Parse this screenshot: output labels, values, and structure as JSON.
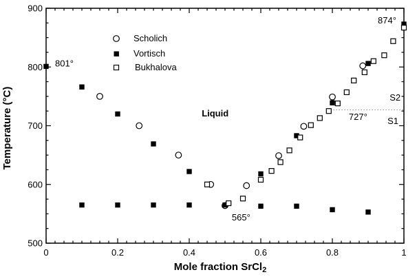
{
  "figure": {
    "background": "#ffffff",
    "axis_color": "#000000",
    "dotted_line_color": "#8a8a8a"
  },
  "chart_data": {
    "type": "scatter",
    "title": "",
    "xlabel_main": "Mole fraction SrCl",
    "xlabel_sub": "2",
    "ylabel": "Temperature (°C)",
    "xlim": [
      0,
      1
    ],
    "ylim": [
      500,
      900
    ],
    "grid": false,
    "legend_position": "upper-left-inside",
    "xticks": {
      "values": [
        0,
        0.2,
        0.4,
        0.6,
        0.8,
        1
      ],
      "labels": [
        "0",
        "0.2",
        "0.4",
        "0.6",
        "0.8",
        "1"
      ],
      "minor_step": 0.025
    },
    "yticks": {
      "values": [
        500,
        600,
        700,
        800,
        900
      ],
      "labels": [
        "500",
        "600",
        "700",
        "800",
        "900"
      ],
      "minor_step": 25
    },
    "series": [
      {
        "name": "Scholich",
        "marker": "open-circle",
        "points": [
          [
            0.15,
            750
          ],
          [
            0.26,
            700
          ],
          [
            0.37,
            650
          ],
          [
            0.46,
            600
          ],
          [
            0.5,
            564
          ],
          [
            0.56,
            598
          ],
          [
            0.65,
            649
          ],
          [
            0.72,
            699
          ],
          [
            0.8,
            749
          ],
          [
            0.885,
            802
          ]
        ]
      },
      {
        "name": "Vortisch",
        "marker": "filled-square",
        "points": [
          [
            0,
            801
          ],
          [
            0.1,
            766
          ],
          [
            0.2,
            720
          ],
          [
            0.3,
            669
          ],
          [
            0.4,
            622
          ],
          [
            0.5,
            565
          ],
          [
            0.6,
            618
          ],
          [
            0.7,
            683
          ],
          [
            0.8,
            739
          ],
          [
            0.9,
            806
          ],
          [
            1.0,
            873
          ],
          [
            0.1,
            565
          ],
          [
            0.2,
            565
          ],
          [
            0.3,
            565
          ],
          [
            0.4,
            565
          ],
          [
            0.6,
            563
          ],
          [
            0.7,
            563
          ],
          [
            0.8,
            557
          ],
          [
            0.9,
            553
          ]
        ]
      },
      {
        "name": "Bukhalova",
        "marker": "open-square",
        "points": [
          [
            0.45,
            600
          ],
          [
            0.51,
            568
          ],
          [
            0.55,
            576
          ],
          [
            0.6,
            608
          ],
          [
            0.63,
            623
          ],
          [
            0.655,
            638
          ],
          [
            0.68,
            658
          ],
          [
            0.71,
            680
          ],
          [
            0.74,
            701
          ],
          [
            0.765,
            713
          ],
          [
            0.79,
            725
          ],
          [
            0.815,
            738
          ],
          [
            0.84,
            757
          ],
          [
            0.86,
            777
          ],
          [
            0.89,
            791
          ],
          [
            0.915,
            810
          ],
          [
            0.945,
            820
          ],
          [
            0.97,
            844
          ],
          [
            1.0,
            867
          ]
        ]
      }
    ],
    "annotations": [
      {
        "id": "label-801",
        "text": "801°",
        "x": 0.025,
        "t": 801,
        "bold": false
      },
      {
        "id": "label-874",
        "text": "874°",
        "x": 0.927,
        "t": 874,
        "bold": false
      },
      {
        "id": "label-565",
        "text": "565°",
        "x": 0.519,
        "t": 539,
        "bold": false
      },
      {
        "id": "label-727",
        "text": "727°",
        "x": 0.846,
        "t": 710,
        "bold": false
      },
      {
        "id": "label-liquid",
        "text": "Liquid",
        "x": 0.435,
        "t": 716,
        "bold": true
      },
      {
        "id": "label-s2",
        "text": "S2",
        "x": 0.96,
        "t": 743,
        "bold": false
      },
      {
        "id": "label-s1",
        "text": "S1",
        "x": 0.954,
        "t": 703,
        "bold": false
      }
    ],
    "transition_line": {
      "temp": 727,
      "x_start": 0.795,
      "x_end": 1.0,
      "style": "dotted"
    }
  }
}
